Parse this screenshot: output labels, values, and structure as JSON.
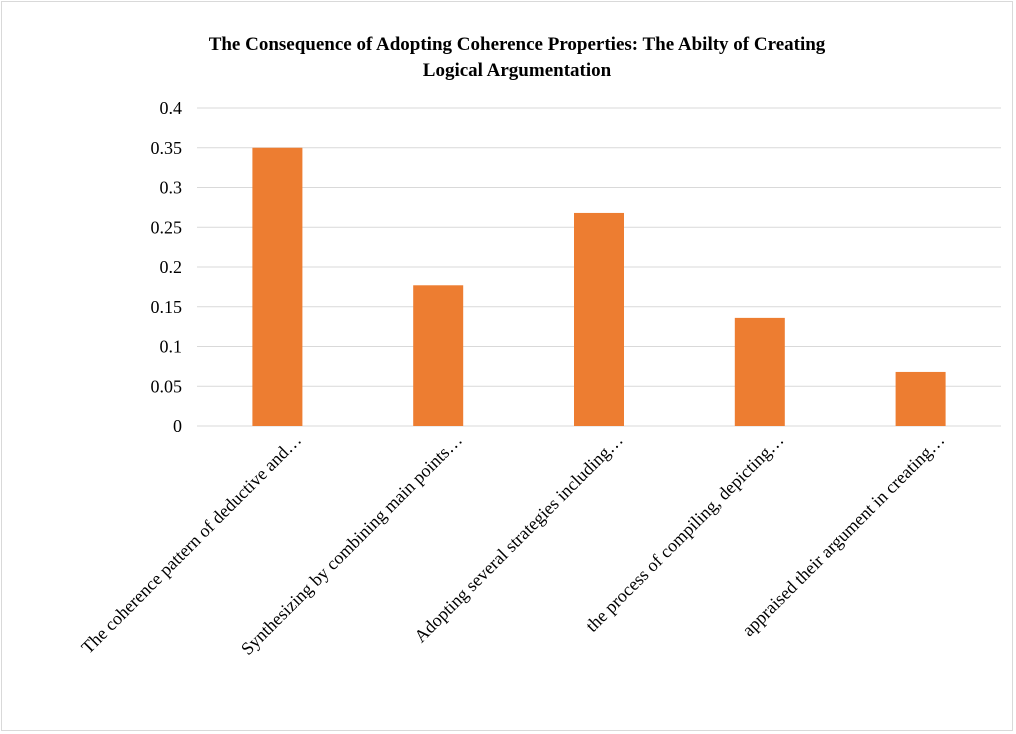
{
  "chart_data": {
    "type": "bar",
    "title_lines": [
      "The Consequence of Adopting Coherence Properties: The Abilty of Creating",
      "Logical Argumentation"
    ],
    "categories": [
      "The coherence pattern of deductive and…",
      "Synthesizing by combining main points…",
      "Adopting several strategies including…",
      "the process of compiling, depicting…",
      "appraised their argument in creating…"
    ],
    "values": [
      0.35,
      0.177,
      0.268,
      0.136,
      0.068
    ],
    "ylim": [
      0,
      0.4
    ],
    "yticks": [
      "0",
      "0.05",
      "0.1",
      "0.15",
      "0.2",
      "0.25",
      "0.3",
      "0.35",
      "0.4"
    ],
    "grid": true,
    "legend": "none",
    "bar_color": "#ED7D31",
    "grid_color": "#D9D9D9"
  }
}
